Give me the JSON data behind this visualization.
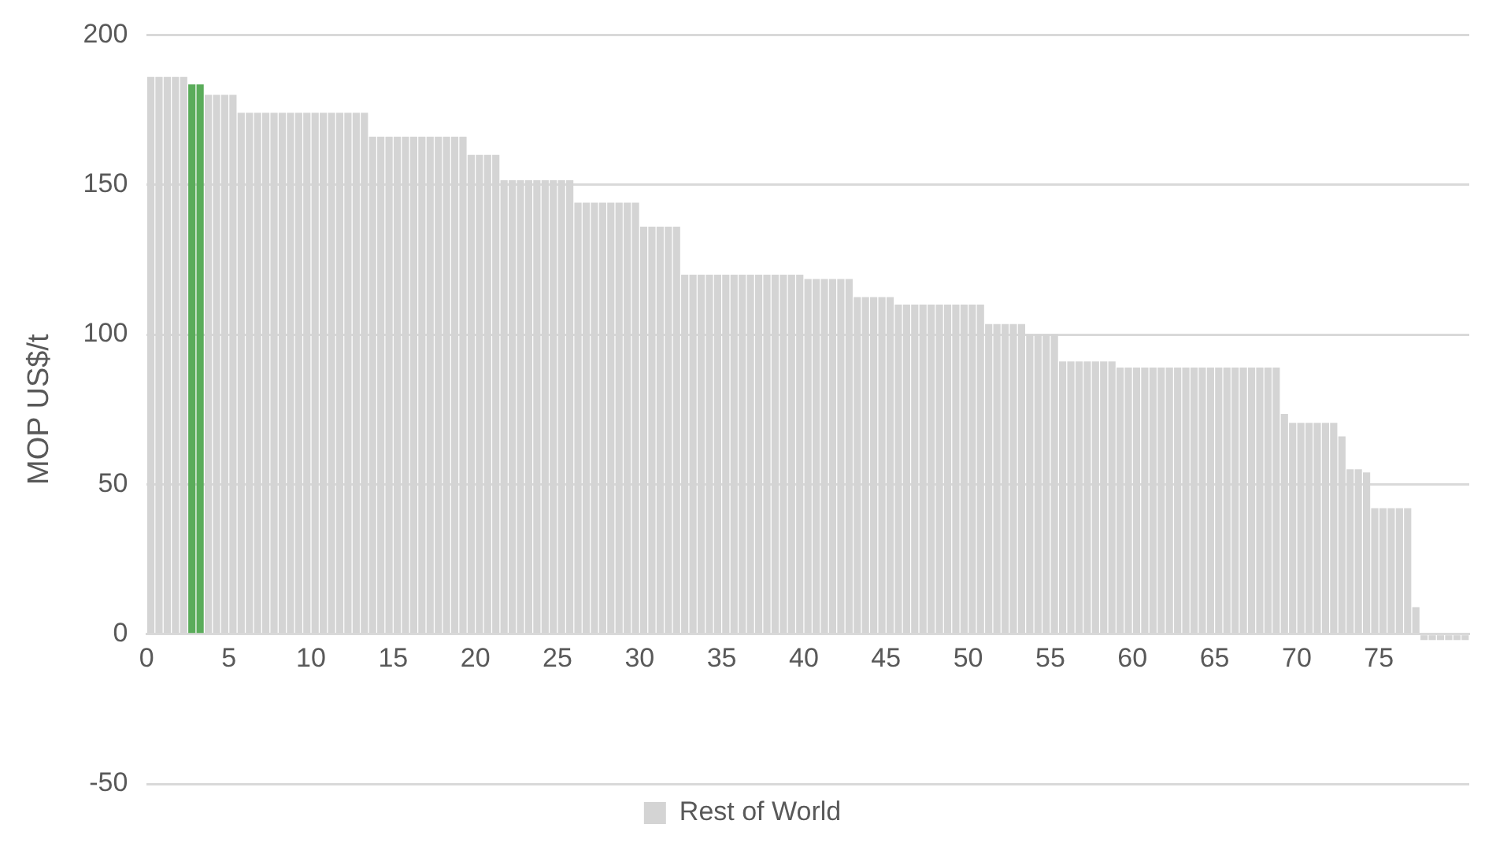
{
  "chart_data": {
    "type": "bar",
    "ylabel": "MOP US$/t",
    "xlim": [
      0,
      80.5
    ],
    "xticks": [
      0,
      5,
      10,
      15,
      20,
      25,
      30,
      35,
      40,
      45,
      50,
      55,
      60,
      65,
      70,
      75
    ],
    "ylim": [
      -50,
      200
    ],
    "yticks": [
      -50,
      0,
      50,
      100,
      150,
      200
    ],
    "grid": "y",
    "legend": "bottom",
    "series": [
      {
        "color": "#5aac5a",
        "x": [
          2.75,
          3.25
        ],
        "values": [
          183.5,
          183.5
        ]
      },
      {
        "name": "Rest of World",
        "color": "#d4d4d4",
        "x": [
          0.25,
          0.75,
          1.25,
          1.75,
          2.25,
          3.75,
          4.25,
          4.75,
          5.25,
          5.75,
          6.25,
          6.75,
          7.25,
          7.75,
          8.25,
          8.75,
          9.25,
          9.75,
          10.25,
          10.75,
          11.25,
          11.75,
          12.25,
          12.75,
          13.25,
          13.75,
          14.25,
          14.75,
          15.25,
          15.75,
          16.25,
          16.75,
          17.25,
          17.75,
          18.25,
          18.75,
          19.25,
          19.75,
          20.25,
          20.75,
          21.25,
          21.75,
          22.25,
          22.75,
          23.25,
          23.75,
          24.25,
          24.75,
          25.25,
          25.75,
          26.25,
          26.75,
          27.25,
          27.75,
          28.25,
          28.75,
          29.25,
          29.75,
          30.25,
          30.75,
          31.25,
          31.75,
          32.25,
          32.75,
          33.25,
          33.75,
          34.25,
          34.75,
          35.25,
          35.75,
          36.25,
          36.75,
          37.25,
          37.75,
          38.25,
          38.75,
          39.25,
          39.75,
          40.25,
          40.75,
          41.25,
          41.75,
          42.25,
          42.75,
          43.25,
          43.75,
          44.25,
          44.75,
          45.25,
          45.75,
          46.25,
          46.75,
          47.25,
          47.75,
          48.25,
          48.75,
          49.25,
          49.75,
          50.25,
          50.75,
          51.25,
          51.75,
          52.25,
          52.75,
          53.25,
          53.75,
          54.25,
          54.75,
          55.25,
          55.75,
          56.25,
          56.75,
          57.25,
          57.75,
          58.25,
          58.75,
          59.25,
          59.75,
          60.25,
          60.75,
          61.25,
          61.75,
          62.25,
          62.75,
          63.25,
          63.75,
          64.25,
          64.75,
          65.25,
          65.75,
          66.25,
          66.75,
          67.25,
          67.75,
          68.25,
          68.75,
          69.25,
          69.75,
          70.25,
          70.75,
          71.25,
          71.75,
          72.25,
          72.75,
          73.25,
          73.75,
          74.25,
          74.75,
          75.25,
          75.75,
          76.25,
          76.75,
          77.25,
          77.75,
          78.25,
          78.75,
          79.25,
          79.75,
          80.25
        ],
        "values": [
          186,
          186,
          186,
          186,
          186,
          180,
          180,
          180,
          180,
          174,
          174,
          174,
          174,
          174,
          174,
          174,
          174,
          174,
          174,
          174,
          174,
          174,
          174,
          174,
          174,
          166,
          166,
          166,
          166,
          166,
          166,
          166,
          166,
          166,
          166,
          166,
          166,
          160,
          160,
          160,
          160,
          151.5,
          151.5,
          151.5,
          151.5,
          151.5,
          151.5,
          151.5,
          151.5,
          151.5,
          144,
          144,
          144,
          144,
          144,
          144,
          144,
          144,
          136,
          136,
          136,
          136,
          136,
          120,
          120,
          120,
          120,
          120,
          120,
          120,
          120,
          120,
          120,
          120,
          120,
          120,
          120,
          120,
          118.5,
          118.5,
          118.5,
          118.5,
          118.5,
          118.5,
          112.5,
          112.5,
          112.5,
          112.5,
          112.5,
          110,
          110,
          110,
          110,
          110,
          110,
          110,
          110,
          110,
          110,
          110,
          103.5,
          103.5,
          103.5,
          103.5,
          103.5,
          100,
          100,
          100,
          100,
          91,
          91,
          91,
          91,
          91,
          91,
          91,
          89,
          89,
          89,
          89,
          89,
          89,
          89,
          89,
          89,
          89,
          89,
          89,
          89,
          89,
          89,
          89,
          89,
          89,
          89,
          89,
          73.5,
          70.5,
          70.5,
          70.5,
          70.5,
          70.5,
          70.5,
          66,
          55,
          55,
          54,
          42,
          42,
          42,
          42,
          42,
          9,
          -2,
          -2,
          -2,
          -2,
          -2,
          -2
        ]
      }
    ]
  }
}
